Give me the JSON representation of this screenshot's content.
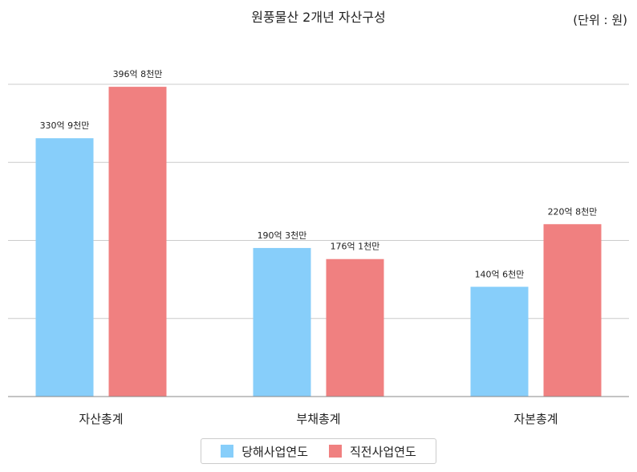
{
  "chart_data": {
    "type": "bar",
    "title": "원풍물산 2개년 자산구성",
    "unit_note": "(단위 : 원)",
    "categories": [
      "자산총계",
      "부채총계",
      "자본총계"
    ],
    "series": [
      {
        "name": "당해사업연도",
        "color": "#87CEFA",
        "values": [
          33090000000,
          19030000000,
          14060000000
        ],
        "labels": [
          "330억 9천만",
          "190억 3천만",
          "140억 6천만"
        ]
      },
      {
        "name": "직전사업연도",
        "color": "#F08080",
        "values": [
          39680000000,
          17610000000,
          22080000000
        ],
        "labels": [
          "396억 8천만",
          "176억 1천만",
          "220억 8천만"
        ]
      }
    ],
    "ylim": [
      0,
      40000000000
    ],
    "y_gridlines": [
      10000000000,
      20000000000,
      30000000000,
      40000000000
    ],
    "grid": true,
    "legend_position": "bottom-center"
  }
}
